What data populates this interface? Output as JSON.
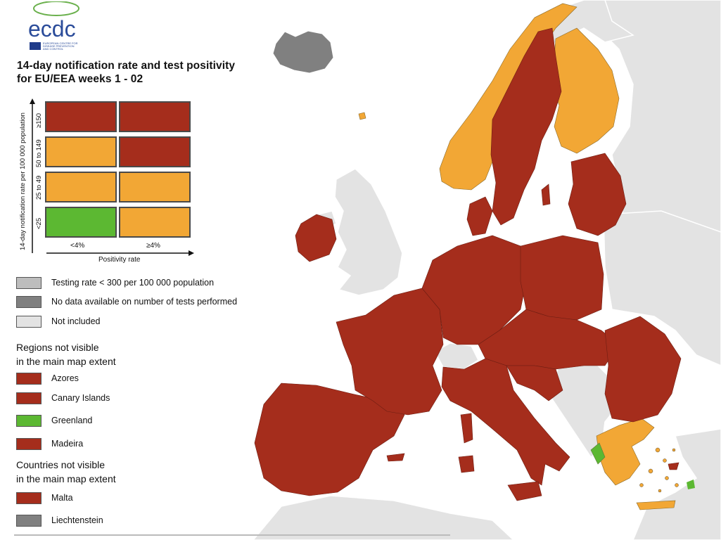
{
  "title_line1": "14-day notification rate and test positivity",
  "title_line2": "for EU/EEA weeks 1 - 02",
  "logo": {
    "acronym": "ecdc",
    "org_line1": "EUROPEAN CENTRE FOR",
    "org_line2": "DISEASE PREVENTION",
    "org_line3": "AND CONTROL"
  },
  "colors": {
    "dark_red": "#a52d1c",
    "orange": "#f2a735",
    "green": "#5cb832",
    "testing_low": "#bdbdbd",
    "no_data": "#808080",
    "not_included": "#e3e3e3",
    "sea": "#ffffff"
  },
  "matrix": {
    "y_axis_title": "14-day notification rate per 100 000 population",
    "x_axis_title": "Positivity rate",
    "rows": [
      "≥150",
      "50 to 149",
      "25 to 49",
      "<25"
    ],
    "cols": [
      "<4%",
      "≥4%"
    ],
    "cells": [
      [
        "dark_red",
        "dark_red"
      ],
      [
        "orange",
        "dark_red"
      ],
      [
        "orange",
        "orange"
      ],
      [
        "green",
        "orange"
      ]
    ]
  },
  "legend_extra": [
    {
      "label": "Testing rate < 300 per 100 000 population",
      "color": "testing_low"
    },
    {
      "label": "No data available on number of tests performed",
      "color": "no_data"
    },
    {
      "label": "Not included",
      "color": "not_included"
    }
  ],
  "regions_heading_line1": "Regions not visible",
  "regions_heading_line2": "in the main map extent",
  "regions": [
    {
      "label": "Azores",
      "color": "dark_red"
    },
    {
      "label": "Canary Islands",
      "color": "dark_red"
    },
    {
      "label": "Greenland",
      "color": "green"
    },
    {
      "label": "Madeira",
      "color": "dark_red"
    }
  ],
  "countries_heading_line1": "Countries not visible",
  "countries_heading_line2": "in the main map extent",
  "countries": [
    {
      "label": "Malta",
      "color": "dark_red"
    },
    {
      "label": "Liechtenstein",
      "color": "no_data"
    }
  ]
}
